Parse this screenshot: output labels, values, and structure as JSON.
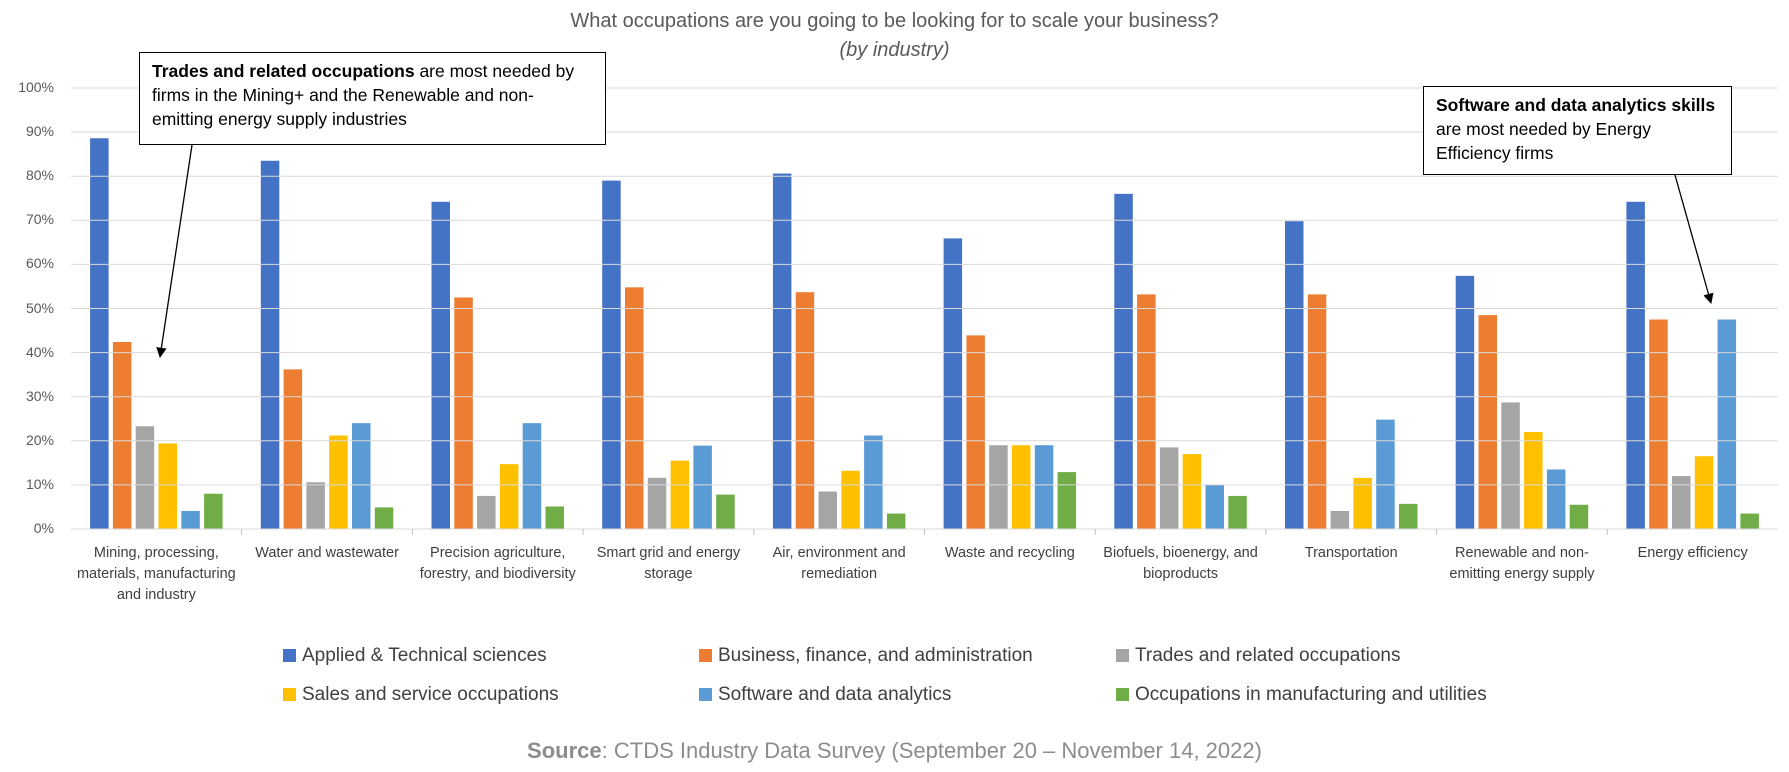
{
  "chart_data": {
    "type": "bar",
    "title": "What occupations are you going to be looking for to scale your business?",
    "subtitle": "(by industry)",
    "categories": [
      "Mining, processing, materials, manufacturing and industry",
      "Water and wastewater",
      "Precision agriculture, forestry, and biodiversity",
      "Smart grid and energy storage",
      "Air, environment and remediation",
      "Waste and recycling",
      "Biofuels, bioenergy, and bioproducts",
      "Transportation",
      "Renewable and non-emitting energy supply",
      "Energy efficiency"
    ],
    "series": [
      {
        "name": "Applied & Technical sciences",
        "color": "#4472c4",
        "values": [
          88.6,
          83.5,
          74.2,
          79,
          80.6,
          65.9,
          76,
          69.8,
          57.4,
          74.2
        ]
      },
      {
        "name": "Business, finance, and administration",
        "color": "#ed7d31",
        "values": [
          42.4,
          36.2,
          52.5,
          54.8,
          53.7,
          43.9,
          53.2,
          53.2,
          48.5,
          47.5
        ]
      },
      {
        "name": "Trades and related occupations",
        "color": "#a5a5a5",
        "values": [
          23.3,
          10.6,
          7.5,
          11.6,
          8.5,
          19,
          18.5,
          4.1,
          28.7,
          12
        ]
      },
      {
        "name": "Sales and service occupations",
        "color": "#ffc000",
        "values": [
          19.4,
          21.2,
          14.7,
          15.5,
          13.2,
          19,
          17,
          11.6,
          22,
          16.5
        ]
      },
      {
        "name": "Software and data analytics",
        "color": "#5b9bd5",
        "values": [
          4.1,
          24,
          24,
          18.9,
          21.2,
          19,
          10,
          24.8,
          13.5,
          47.5
        ]
      },
      {
        "name": "Occupations in manufacturing and utilities",
        "color": "#70ad47",
        "values": [
          8,
          4.9,
          5.1,
          7.8,
          3.5,
          12.9,
          7.5,
          5.7,
          5.5,
          3.5
        ]
      }
    ],
    "ylim": [
      0,
      100
    ],
    "yticks": [
      {
        "value": 0,
        "label": "0%"
      },
      {
        "value": 10,
        "label": "10%"
      },
      {
        "value": 20,
        "label": "20%"
      },
      {
        "value": 30,
        "label": "30%"
      },
      {
        "value": 40,
        "label": "40%"
      },
      {
        "value": 50,
        "label": "50%"
      },
      {
        "value": 60,
        "label": "60%"
      },
      {
        "value": 70,
        "label": "70%"
      },
      {
        "value": 80,
        "label": "80%"
      },
      {
        "value": 90,
        "label": "90%"
      },
      {
        "value": 100,
        "label": "100%"
      }
    ],
    "grid": true,
    "annotations": [
      {
        "bold": "Trades and related occupations",
        "text": " are most needed by firms in the Mining+ and the Renewable and non-emitting energy supply industries"
      },
      {
        "bold": "Software and data analytics skills",
        "text": " are most needed by Energy Efficiency firms"
      }
    ],
    "source": {
      "bold": "Source",
      "text": ": CTDS Industry Data Survey (September 20 – November 14, 2022)"
    }
  }
}
